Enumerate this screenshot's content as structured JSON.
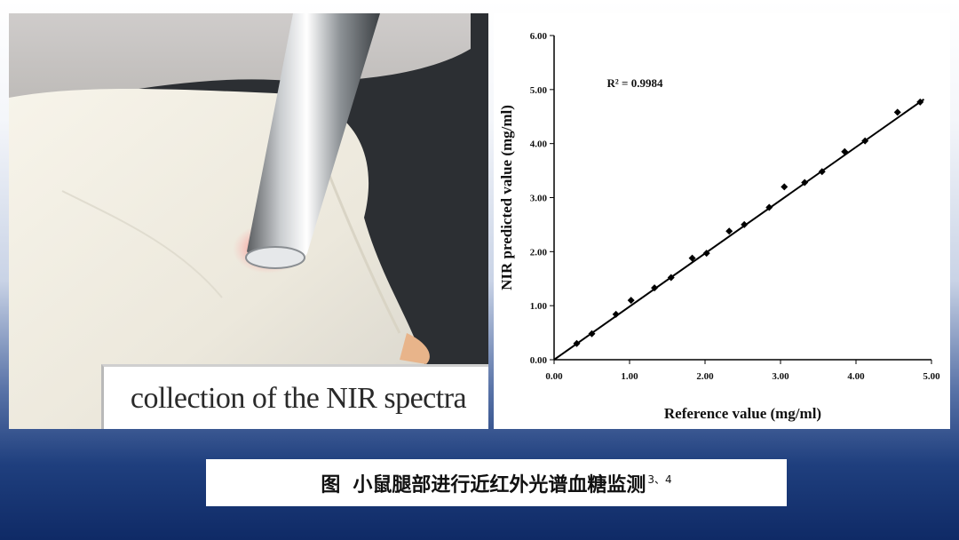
{
  "photo": {
    "caption": "collection of the NIR spectra"
  },
  "figure_caption": {
    "label": "图",
    "text": "小鼠腿部进行近红外光谱血糖监测",
    "refs": "3、4"
  },
  "chart_data": {
    "type": "scatter",
    "xlabel": "Reference value (mg/ml)",
    "ylabel": "NIR predicted value (mg/ml)",
    "annotation": "R² = 0.9984",
    "xlim": [
      0,
      5
    ],
    "ylim": [
      0,
      6
    ],
    "x_ticks": [
      "0.00",
      "1.00",
      "2.00",
      "3.00",
      "4.00",
      "5.00"
    ],
    "y_ticks": [
      "0.00",
      "1.00",
      "2.00",
      "3.00",
      "4.00",
      "5.00",
      "6.00"
    ],
    "trendline": {
      "x": [
        0,
        4.9
      ],
      "y": [
        0,
        4.82
      ]
    },
    "x": [
      0.3,
      0.5,
      0.82,
      1.02,
      1.33,
      1.55,
      1.83,
      2.02,
      2.32,
      2.52,
      2.85,
      3.05,
      3.32,
      3.55,
      3.85,
      4.12,
      4.55,
      4.85
    ],
    "y": [
      0.3,
      0.48,
      0.84,
      1.1,
      1.33,
      1.52,
      1.88,
      1.97,
      2.38,
      2.5,
      2.82,
      3.2,
      3.28,
      3.48,
      3.85,
      4.05,
      4.58,
      4.77
    ]
  }
}
